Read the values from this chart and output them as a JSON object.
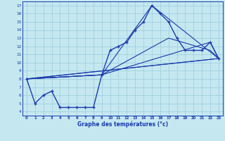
{
  "xlabel": "Graphe des températures (°c)",
  "bg_color": "#c5e8f0",
  "grid_color": "#9fcfdf",
  "line_color": "#1a3aad",
  "xlim": [
    -0.5,
    23.5
  ],
  "ylim": [
    3.5,
    17.5
  ],
  "xticks": [
    0,
    1,
    2,
    3,
    4,
    5,
    6,
    7,
    8,
    9,
    10,
    11,
    12,
    13,
    14,
    15,
    16,
    17,
    18,
    19,
    20,
    21,
    22,
    23
  ],
  "yticks": [
    4,
    5,
    6,
    7,
    8,
    9,
    10,
    11,
    12,
    13,
    14,
    15,
    16,
    17
  ],
  "main_x": [
    0,
    1,
    2,
    3,
    4,
    5,
    6,
    7,
    8,
    9,
    10,
    11,
    12,
    13,
    14,
    15,
    16,
    17,
    18,
    19,
    20,
    21,
    22,
    23
  ],
  "main_y": [
    8.0,
    5.0,
    6.0,
    6.5,
    4.5,
    4.5,
    4.5,
    4.5,
    4.5,
    8.5,
    11.5,
    12.0,
    12.5,
    14.0,
    15.0,
    17.0,
    16.0,
    15.0,
    13.0,
    11.5,
    11.5,
    11.5,
    12.5,
    10.5
  ],
  "line2_x": [
    0,
    23
  ],
  "line2_y": [
    8.0,
    10.5
  ],
  "line3_x": [
    0,
    23
  ],
  "line3_y": [
    8.0,
    10.5
  ],
  "line4_x": [
    0,
    9,
    15,
    23
  ],
  "line4_y": [
    8.0,
    8.5,
    17.0,
    10.5
  ],
  "line5_x": [
    0,
    9,
    22,
    23
  ],
  "line5_y": [
    8.0,
    8.5,
    12.5,
    10.5
  ],
  "line6_x": [
    0,
    9,
    17,
    22,
    23
  ],
  "line6_y": [
    8.0,
    8.5,
    13.0,
    11.5,
    10.5
  ]
}
